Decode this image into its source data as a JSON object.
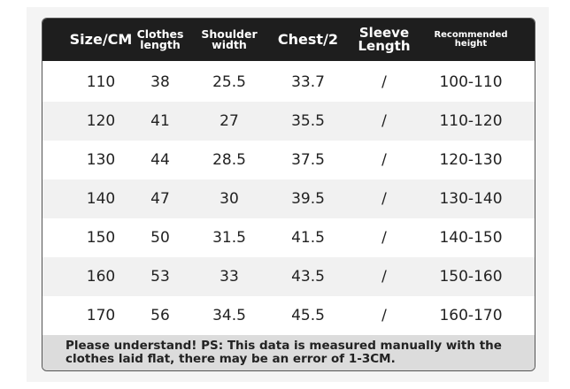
{
  "table": {
    "header": [
      [
        "Size/CM"
      ],
      [
        "Clothes",
        "length"
      ],
      [
        "Shoulder",
        "width"
      ],
      [
        "Chest/2"
      ],
      [
        "Sleeve",
        "Length"
      ],
      [
        "Recommended",
        "height"
      ]
    ],
    "rows": [
      [
        "110",
        "38",
        "25.5",
        "33.7",
        "/",
        "100-110"
      ],
      [
        "120",
        "41",
        "27",
        "35.5",
        "/",
        "110-120"
      ],
      [
        "130",
        "44",
        "28.5",
        "37.5",
        "/",
        "120-130"
      ],
      [
        "140",
        "47",
        "30",
        "39.5",
        "/",
        "130-140"
      ],
      [
        "150",
        "50",
        "31.5",
        "41.5",
        "/",
        "140-150"
      ],
      [
        "160",
        "53",
        "33",
        "43.5",
        "/",
        "150-160"
      ],
      [
        "170",
        "56",
        "34.5",
        "45.5",
        "/",
        "160-170"
      ]
    ],
    "note": [
      "Please understand! PS: This data is measured manually with the",
      "clothes laid flat, there may be an error of 1-3CM."
    ]
  }
}
